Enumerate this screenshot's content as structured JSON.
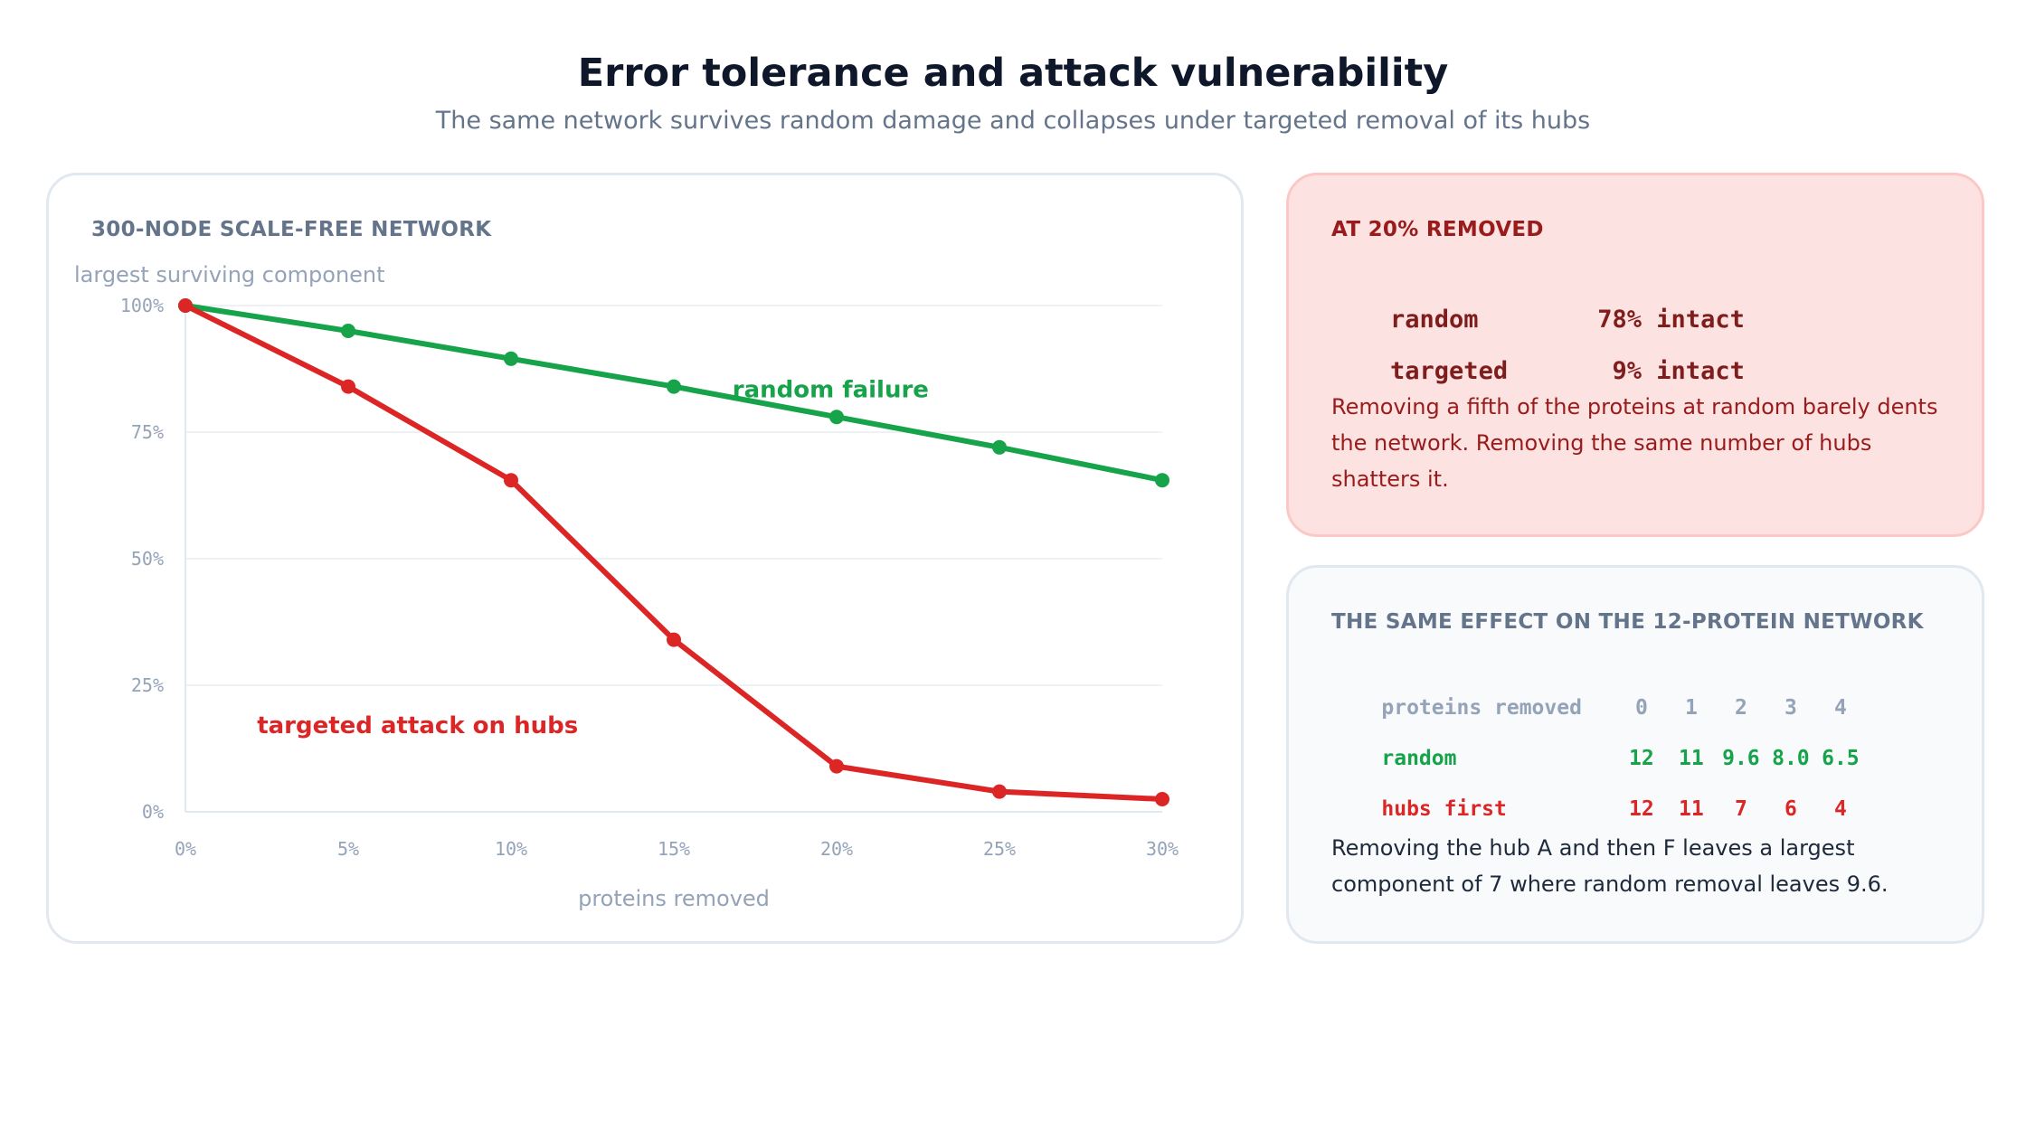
{
  "header": {
    "title": "Error tolerance and attack vulnerability",
    "subtitle": "The same network survives random damage and collapses under targeted removal of its hubs"
  },
  "chart_panel": {
    "label": "300-NODE SCALE-FREE NETWORK"
  },
  "chart_data": {
    "type": "line",
    "title": "300-NODE SCALE-FREE NETWORK",
    "xlabel": "proteins removed",
    "ylabel": "largest surviving component",
    "x": [
      0,
      5,
      10,
      15,
      20,
      25,
      30
    ],
    "x_tick_labels": [
      "0%",
      "5%",
      "10%",
      "15%",
      "20%",
      "25%",
      "30%"
    ],
    "y_ticks": [
      0,
      25,
      50,
      75,
      100
    ],
    "y_tick_labels": [
      "0%",
      "25%",
      "50%",
      "75%",
      "100%"
    ],
    "xlim": [
      0,
      30
    ],
    "ylim": [
      0,
      100
    ],
    "grid": true,
    "series": [
      {
        "name": "random failure",
        "color": "#16a34a",
        "values": [
          100,
          95,
          89.5,
          84,
          78,
          72,
          65.5
        ]
      },
      {
        "name": "targeted attack on hubs",
        "color": "#dc2626",
        "values": [
          100,
          84,
          65.5,
          34,
          9,
          4,
          2.5
        ]
      }
    ]
  },
  "summary_panel": {
    "label": "AT 20% REMOVED",
    "rows": [
      {
        "name": "random",
        "value": "78%",
        "unit": "intact"
      },
      {
        "name": "targeted",
        "value": "9%",
        "unit": "intact"
      }
    ],
    "text": "Removing a fifth of the proteins at random barely dents the network. Removing the same number of hubs shatters it."
  },
  "small_network_panel": {
    "label": "THE SAME EFFECT ON THE 12-PROTEIN NETWORK",
    "header_label": "proteins removed",
    "columns": [
      "0",
      "1",
      "2",
      "3",
      "4"
    ],
    "random_label": "random",
    "random_values": [
      "12",
      "11",
      "9.6",
      "8.0",
      "6.5"
    ],
    "hubs_label": "hubs first",
    "hubs_values": [
      "12",
      "11",
      "7",
      "6",
      "4"
    ],
    "text": "Removing the hub A and then F leaves a largest component of 7 where random removal leaves 9.6."
  },
  "colors": {
    "random": "#16a34a",
    "targeted": "#dc2626",
    "alert_bg": "#fde2e2",
    "alert_text": "#991b1b"
  }
}
